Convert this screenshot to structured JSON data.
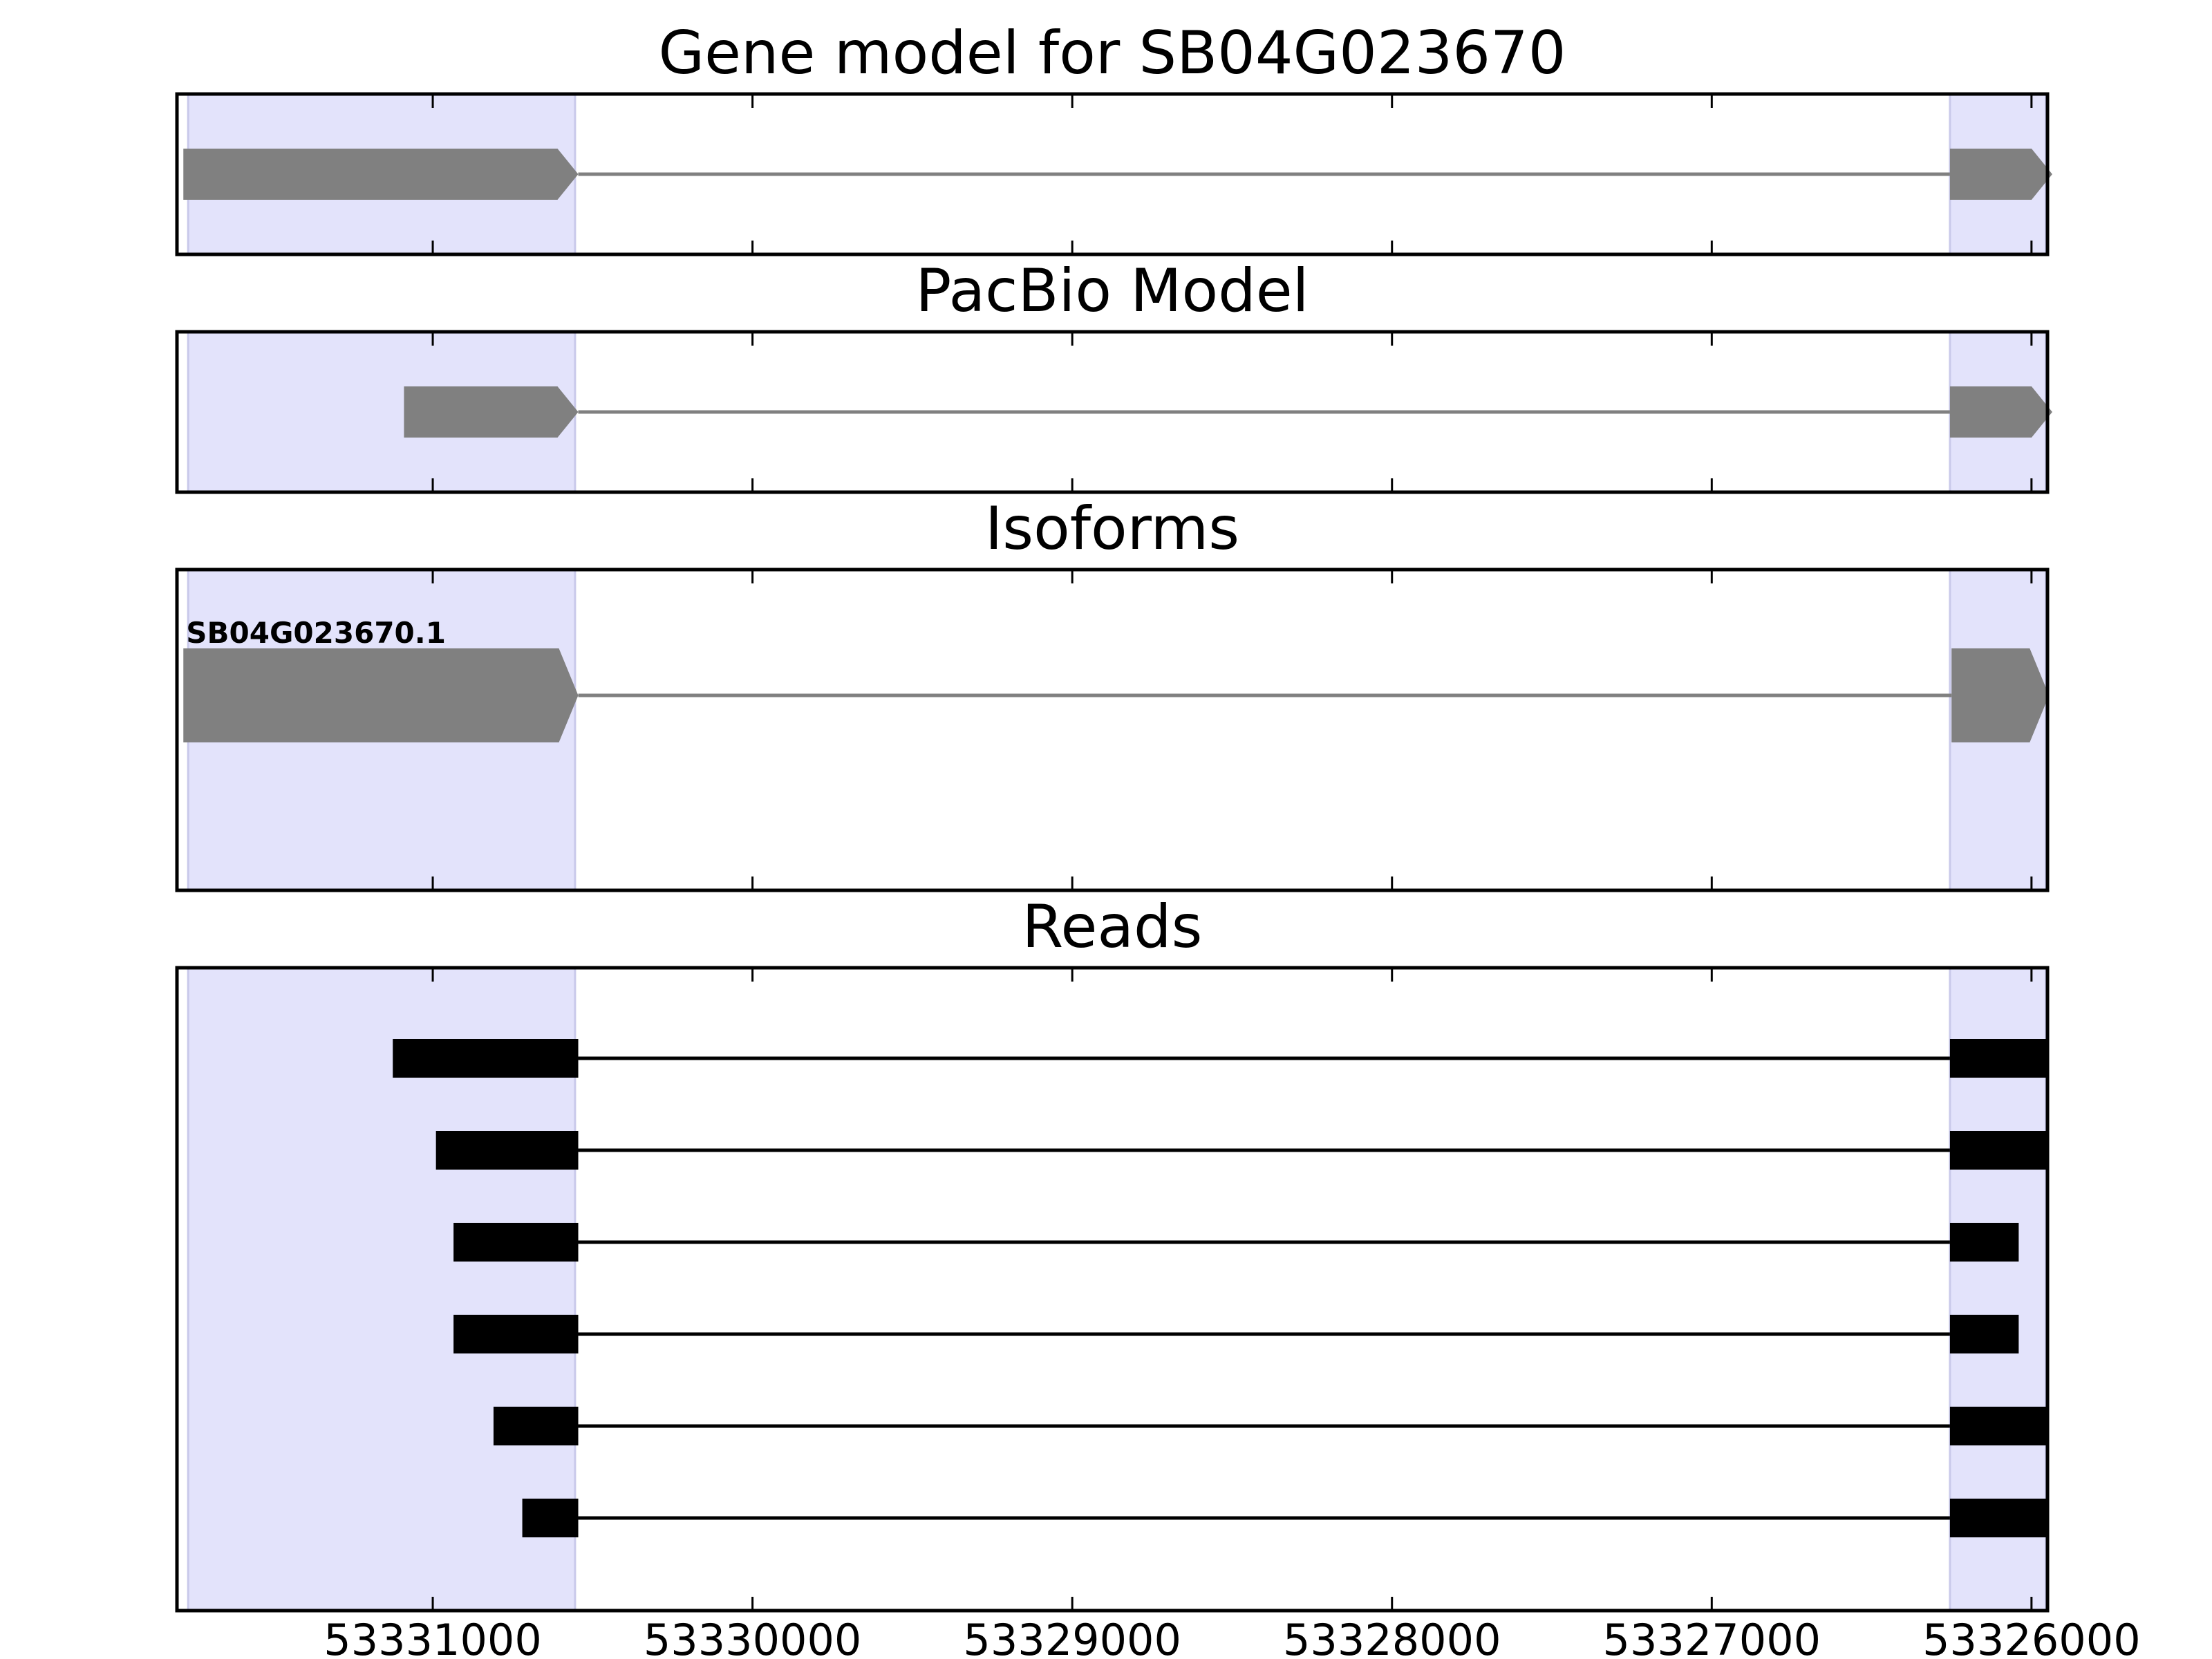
{
  "chart_data": {
    "type": "gene-model-track",
    "xaxis": {
      "range": [
        53331800,
        53325950
      ],
      "reversed": true,
      "ticks": [
        53331000,
        53330000,
        53329000,
        53328000,
        53327000,
        53326000
      ],
      "tick_labels": [
        "53331000",
        "53330000",
        "53329000",
        "53328000",
        "53327000",
        "53326000"
      ]
    },
    "highlighted_regions": [
      {
        "start": 53331765,
        "end": 53330555
      },
      {
        "start": 53326255,
        "end": 53325955
      }
    ],
    "colors": {
      "highlight": "#e3e3fb",
      "highlight_edge": "#c9c9ea",
      "model": "#808080",
      "read": "#000000",
      "frame": "#000000"
    },
    "panels": [
      {
        "id": "gene-model",
        "title": "Gene model for SB04G023670",
        "style": "gene",
        "transcripts": [
          {
            "exons": [
              [
                53331780,
                53330545
              ],
              [
                53326255,
                53325935
              ]
            ]
          }
        ]
      },
      {
        "id": "pacbio-model",
        "title": "PacBio Model",
        "style": "gene",
        "transcripts": [
          {
            "exons": [
              [
                53331090,
                53330545
              ],
              [
                53326255,
                53325935
              ]
            ]
          }
        ]
      },
      {
        "id": "isoforms",
        "title": "Isoforms",
        "style": "gene",
        "transcripts": [
          {
            "label": "SB04G023670.1",
            "exons": [
              [
                53331780,
                53330545
              ],
              [
                53326250,
                53325945
              ]
            ]
          }
        ]
      },
      {
        "id": "reads",
        "title": "Reads",
        "style": "read",
        "transcripts": [
          {
            "exons": [
              [
                53331125,
                53330545
              ],
              [
                53326255,
                53325950
              ]
            ]
          },
          {
            "exons": [
              [
                53330990,
                53330545
              ],
              [
                53326255,
                53325945
              ]
            ]
          },
          {
            "exons": [
              [
                53330935,
                53330545
              ],
              [
                53326255,
                53326040
              ]
            ]
          },
          {
            "exons": [
              [
                53330935,
                53330545
              ],
              [
                53326255,
                53326040
              ]
            ]
          },
          {
            "exons": [
              [
                53330810,
                53330545
              ],
              [
                53326255,
                53325945
              ]
            ]
          },
          {
            "exons": [
              [
                53330720,
                53330545
              ],
              [
                53326255,
                53325945
              ]
            ]
          }
        ]
      }
    ]
  }
}
